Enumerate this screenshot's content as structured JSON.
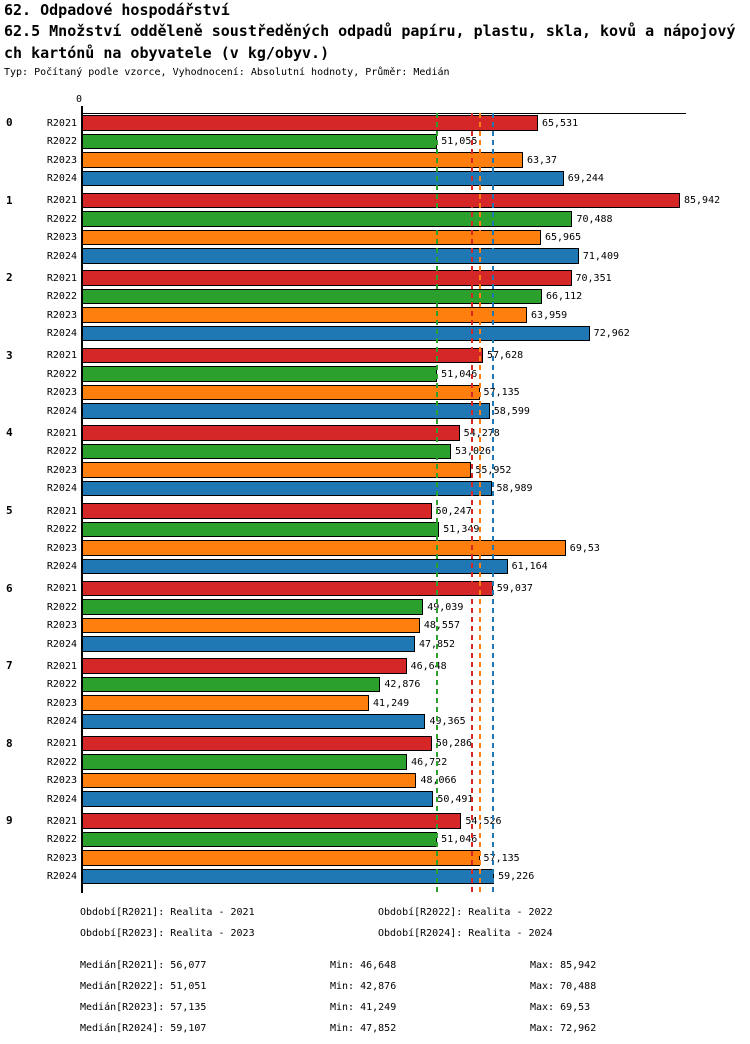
{
  "header": {
    "title": "62. Odpadové hospodářství",
    "subtitle_line1": "62.5 Množství odděleně soustředěných odpadů papíru, plastu, skla, kovů a nápojový",
    "subtitle_line2": "ch kartónů na obyvatele (v kg/obyv.)",
    "meta": "Typ: Počítaný podle vzorce, Vyhodnocení: Absolutní hodnoty, Průměr: Medián"
  },
  "chart_data": {
    "type": "bar",
    "orientation": "horizontal",
    "title": "62.5 Množství odděleně soustředěných odpadů papíru, plastu, skla, kovů a nápojových kartónů na obyvatele (v kg/obyv.)",
    "categories": [
      "0",
      "1",
      "2",
      "3",
      "4",
      "5",
      "6",
      "7",
      "8",
      "9"
    ],
    "x_axis": {
      "tick_labels": [
        "0"
      ],
      "min": 0,
      "max_value": 85.942
    },
    "grid": false,
    "legend_position": "none",
    "series": [
      {
        "name": "R2021",
        "color": "#d62728",
        "median": 56.077,
        "median_line_style": "dashed",
        "values": [
          65.531,
          85.942,
          70.351,
          57.628,
          54.278,
          50.247,
          59.037,
          46.648,
          50.286,
          54.526
        ],
        "labels": [
          "65,531",
          "85,942",
          "70,351",
          "57,628",
          "54,278",
          "50,247",
          "59,037",
          "46,648",
          "50,286",
          "54,526"
        ]
      },
      {
        "name": "R2022",
        "color": "#2ca02c",
        "median": 51.051,
        "median_line_style": "dashed",
        "values": [
          51.055,
          70.488,
          66.112,
          51.046,
          53.026,
          51.349,
          49.039,
          42.876,
          46.722,
          51.046
        ],
        "labels": [
          "51,055",
          "70,488",
          "66,112",
          "51,046",
          "53,026",
          "51,349",
          "49,039",
          "42,876",
          "46,722",
          "51,046"
        ]
      },
      {
        "name": "R2023",
        "color": "#ff7f0e",
        "median": 57.135,
        "median_line_style": "dashed",
        "values": [
          63.37,
          65.965,
          63.959,
          57.135,
          55.952,
          69.53,
          48.557,
          41.249,
          48.066,
          57.135
        ],
        "labels": [
          "63,37",
          "65,965",
          "63,959",
          "57,135",
          "55,952",
          "69,53",
          "48,557",
          "41,249",
          "48,066",
          "57,135"
        ]
      },
      {
        "name": "R2024",
        "color": "#1f77b4",
        "median": 59.107,
        "median_line_style": "dashed",
        "values": [
          69.244,
          71.409,
          72.962,
          58.599,
          58.989,
          61.164,
          47.852,
          49.365,
          50.491,
          59.226
        ],
        "labels": [
          "69,244",
          "71,409",
          "72,962",
          "58,599",
          "58,989",
          "61,164",
          "47,852",
          "49,365",
          "50,491",
          "59,226"
        ]
      }
    ]
  },
  "footer": {
    "periods": [
      "Období[R2021]: Realita - 2021",
      "Období[R2022]: Realita - 2022",
      "Období[R2023]: Realita - 2023",
      "Období[R2024]: Realita - 2024"
    ],
    "stats": [
      {
        "median": "Medián[R2021]: 56,077",
        "min": "Min: 46,648",
        "max": "Max: 85,942"
      },
      {
        "median": "Medián[R2022]: 51,051",
        "min": "Min: 42,876",
        "max": "Max: 70,488"
      },
      {
        "median": "Medián[R2023]: 57,135",
        "min": "Min: 41,249",
        "max": "Max: 69,53"
      },
      {
        "median": "Medián[R2024]: 59,107",
        "min": "Min: 47,852",
        "max": "Max: 72,962"
      }
    ]
  }
}
